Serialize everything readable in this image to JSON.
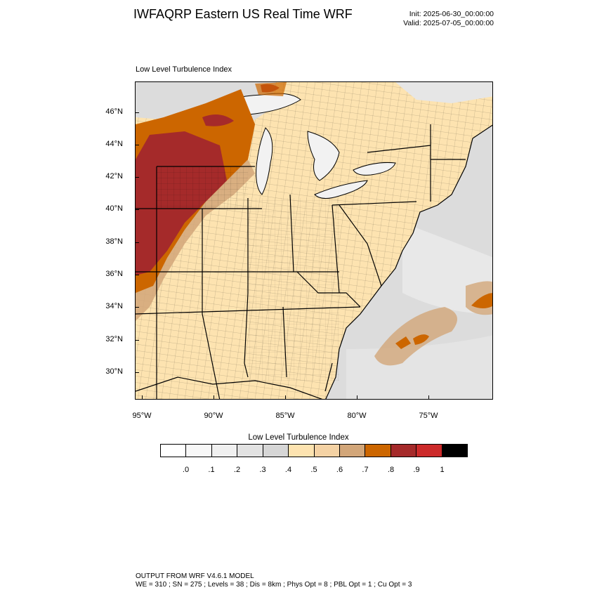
{
  "header": {
    "title": "IWFAQRP Eastern US Real Time WRF",
    "init": "Init: 2025-06-30_00:00:00",
    "valid": "Valid: 2025-07-05_00:00:00"
  },
  "map": {
    "field_label": "Low Level Turbulence Index",
    "lat_labels": [
      "46°N",
      "44°N",
      "42°N",
      "40°N",
      "38°N",
      "36°N",
      "34°N",
      "32°N",
      "30°N"
    ],
    "lon_labels": [
      "95°W",
      "90°W",
      "85°W",
      "80°W",
      "75°W"
    ],
    "colors": {
      "background": "#d9d9d9",
      "lake": "#f5f5f5",
      "land_base": "#fde3b0",
      "mid": "#d2a679",
      "high": "#cc6600",
      "very_high": "#a52a2a",
      "extreme": "#cc2a2a",
      "boundary": "#000000"
    }
  },
  "colorbar": {
    "title": "Low Level Turbulence Index",
    "labels": [
      ".0",
      ".1",
      ".2",
      ".3",
      ".4",
      ".5",
      ".6",
      ".7",
      ".8",
      ".9",
      "1"
    ],
    "colors": [
      "#ffffff",
      "#f7f7f7",
      "#f0f0f0",
      "#e2e2e2",
      "#d6d6d6",
      "#fde3b0",
      "#f4d2a4",
      "#d2a679",
      "#cc6600",
      "#a52a2a",
      "#cc2a2a",
      "#000000"
    ]
  },
  "footer": {
    "line1": "OUTPUT FROM WRF V4.6.1 MODEL",
    "line2": "WE = 310 ; SN = 275 ; Levels = 38 ; Dis = 8km ; Phys Opt = 8 ; PBL Opt = 1 ; Cu Opt = 3"
  }
}
